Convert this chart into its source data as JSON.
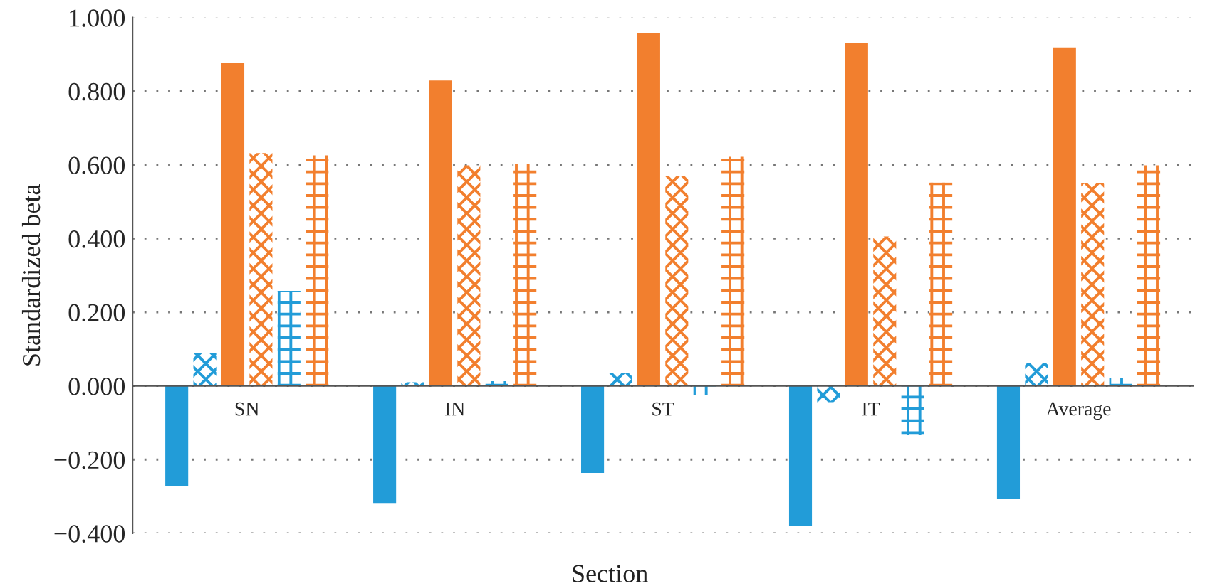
{
  "chart_data": {
    "type": "bar",
    "xlabel": "Section",
    "ylabel": "Standardized beta",
    "categories": [
      "SN",
      "IN",
      "ST",
      "IT",
      "Average"
    ],
    "series": [
      {
        "color": "#229cd8",
        "values": [
          -0.273,
          -0.318,
          -0.236,
          -0.38,
          -0.306
        ]
      },
      {
        "color": "#229cd8",
        "values": [
          0.089,
          0.01,
          0.034,
          -0.044,
          0.061
        ]
      },
      {
        "color": "#f27f2e",
        "values": [
          0.876,
          0.829,
          0.958,
          0.931,
          0.919
        ]
      },
      {
        "color": "#f27f2e",
        "values": [
          0.632,
          0.599,
          0.57,
          0.406,
          0.551
        ]
      },
      {
        "color": "#229cd8",
        "values": [
          0.258,
          0.013,
          -0.025,
          -0.133,
          0.021
        ]
      },
      {
        "color": "#f27f2e",
        "values": [
          0.626,
          0.603,
          0.622,
          0.552,
          0.599
        ]
      }
    ],
    "ylim": [
      -0.4,
      1.0
    ],
    "yticks": [
      {
        "value": -0.4,
        "label": "−0.400"
      },
      {
        "value": -0.2,
        "label": "−0.200"
      },
      {
        "value": 0,
        "label": "0.000"
      },
      {
        "value": 0.2,
        "label": "0.200"
      },
      {
        "value": 0.4,
        "label": "0.400"
      },
      {
        "value": 0.6,
        "label": "0.600"
      },
      {
        "value": 0.8,
        "label": "0.800"
      },
      {
        "value": 1.0,
        "label": "1.000"
      }
    ],
    "grid": "y",
    "legend": false
  }
}
